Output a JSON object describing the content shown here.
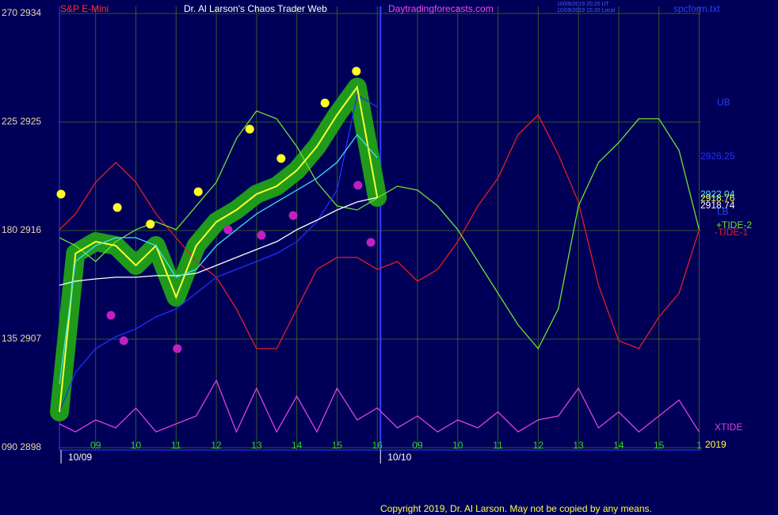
{
  "chart_data": {
    "type": "line",
    "symbol": "S&P E-Mini",
    "title": "Dr. Al Larson's Chaos Trader Web",
    "website": "Daytradingforecasts.com",
    "timestamps": [
      "10/09/2019 20:20 UT",
      "10/09/2019 15:20 Local"
    ],
    "file": "spcform.txt",
    "annotations": [
      "UB",
      "LB"
    ],
    "year": "2019",
    "copyright": "Copyright 2019, Dr. Al Larson. May not be copied by any means.",
    "grid": true,
    "grid_color": "#36552a",
    "axis_color": "#3040ff",
    "ylim": [
      2898,
      2934
    ],
    "yticks": [
      {
        "value": 2934,
        "label": "270 2934"
      },
      {
        "value": 2925,
        "label": "225 2925"
      },
      {
        "value": 2916,
        "label": "180 2916"
      },
      {
        "value": 2907,
        "label": "135 2907"
      },
      {
        "value": 2898,
        "label": "090 2898"
      }
    ],
    "xlim": [
      0.1,
      16.05
    ],
    "xticks": [
      {
        "value": 1,
        "label": "09"
      },
      {
        "value": 2,
        "label": "10"
      },
      {
        "value": 3,
        "label": "11"
      },
      {
        "value": 4,
        "label": "12"
      },
      {
        "value": 5,
        "label": "13"
      },
      {
        "value": 6,
        "label": "14"
      },
      {
        "value": 7,
        "label": "15"
      },
      {
        "value": 8,
        "label": "16"
      },
      {
        "value": 9,
        "label": "09"
      },
      {
        "value": 10,
        "label": "10"
      },
      {
        "value": 11,
        "label": "11"
      },
      {
        "value": 12,
        "label": "12"
      },
      {
        "value": 13,
        "label": "13"
      },
      {
        "value": 14,
        "label": "14"
      },
      {
        "value": 15,
        "label": "15"
      },
      {
        "value": 16,
        "label": "1"
      }
    ],
    "day_labels": [
      {
        "value": 0.14,
        "label": "10/09"
      },
      {
        "value": 8.08,
        "label": "10/10"
      }
    ],
    "x": [
      0.1,
      0.5,
      1,
      1.5,
      2,
      2.5,
      3,
      3.5,
      4,
      4.5,
      5,
      5.5,
      6,
      6.5,
      7,
      7.5,
      8,
      8.5,
      9,
      9.5,
      10,
      10.5,
      11,
      11.5,
      12,
      12.5,
      13,
      13.5,
      14,
      14.5,
      15,
      15.5,
      16
    ],
    "series": [
      {
        "name": "-TIDE-1",
        "color": "#e02020",
        "values": [
          2916.07,
          2917.38,
          2920.01,
          2921.65,
          2920.01,
          2917.38,
          2915.41,
          2913.44,
          2912.13,
          2909.5,
          2906.21,
          2906.21,
          2909.5,
          2912.78,
          2913.77,
          2913.77,
          2912.78,
          2913.44,
          2911.8,
          2912.78,
          2915.08,
          2918.04,
          2920.34,
          2923.95,
          2925.59,
          2922.31,
          2918.37,
          2911.47,
          2906.87,
          2906.21,
          2908.84,
          2910.81,
          2916.07
        ]
      },
      {
        "name": "+TIDE-2",
        "color": "#70e030",
        "values": [
          2915.41,
          2914.75,
          2913.44,
          2915.08,
          2916.07,
          2916.72,
          2916.07,
          2918.04,
          2920.01,
          2923.62,
          2925.92,
          2925.27,
          2922.97,
          2920.01,
          2918.04,
          2917.71,
          2918.7,
          2919.68,
          2919.35,
          2918.04,
          2916.07,
          2913.44,
          2910.81,
          2908.18,
          2906.21,
          2909.5,
          2918.04,
          2921.65,
          2923.29,
          2925.27,
          2925.27,
          2922.64,
          2916.07
        ]
      },
      {
        "name": "XTIDE",
        "color": "#e040e0",
        "values": [
          2899.97,
          2899.31,
          2900.3,
          2899.64,
          2901.29,
          2899.31,
          2899.97,
          2900.63,
          2903.58,
          2899.31,
          2902.93,
          2899.31,
          2902.27,
          2899.31,
          2902.93,
          2900.3,
          2901.29,
          2899.64,
          2900.63,
          2899.31,
          2900.3,
          2899.64,
          2900.96,
          2899.31,
          2900.3,
          2900.63,
          2902.93,
          2899.64,
          2900.96,
          2899.31,
          2900.63,
          2901.94,
          2899.31
        ]
      },
      {
        "color": "#2030ff",
        "values": [
          2900.96,
          2904.24,
          2906.21,
          2907.2,
          2907.85,
          2908.84,
          2909.5,
          2910.81,
          2912.13,
          2912.78,
          2913.44,
          2914.1,
          2915.08,
          2916.72,
          2919.35,
          2927.24,
          2926.25,
          null,
          null,
          null,
          null,
          null,
          null,
          null,
          null,
          null,
          null,
          null,
          null,
          null,
          null,
          null,
          null
        ]
      },
      {
        "color": "#ffffff",
        "values": [
          2911.47,
          2911.8,
          2911.99,
          2912.13,
          2912.13,
          2912.26,
          2912.26,
          2912.45,
          2913.11,
          2913.77,
          2914.43,
          2915.08,
          2916.07,
          2916.86,
          2917.71,
          2918.37,
          2918.74,
          null,
          null,
          null,
          null,
          null,
          null,
          null,
          null,
          null,
          null,
          null,
          null,
          null,
          null,
          null,
          null
        ]
      },
      {
        "color": "#ffff30",
        "envelope_color": "#1f9a1a",
        "values": [
          2900.96,
          2914.1,
          2915.08,
          2914.75,
          2913.11,
          2914.75,
          2910.48,
          2914.75,
          2916.72,
          2917.71,
          2919.02,
          2919.68,
          2920.99,
          2922.97,
          2925.59,
          2927.89,
          2918.76,
          null,
          null,
          null,
          null,
          null,
          null,
          null,
          null,
          null,
          null,
          null,
          null,
          null,
          null,
          null,
          null
        ]
      },
      {
        "color": "#40e0ff",
        "values": [
          2903.26,
          2913.44,
          2914.75,
          2915.41,
          2915.41,
          2914.75,
          2912.13,
          2912.78,
          2914.75,
          2916.07,
          2917.38,
          2918.37,
          2919.35,
          2920.34,
          2921.65,
          2923.95,
          2922.04,
          null,
          null,
          null,
          null,
          null,
          null,
          null,
          null,
          null,
          null,
          null,
          null,
          null,
          null,
          null,
          null
        ]
      }
    ],
    "dots": [
      {
        "color": "#ffff20",
        "x": [
          0.14,
          1.54,
          2.36,
          3.55,
          4.83,
          5.61,
          6.7,
          7.48
        ],
        "values": [
          2919.02,
          2917.91,
          2916.53,
          2919.22,
          2924.41,
          2921.98,
          2926.58,
          2929.21
        ]
      },
      {
        "color": "#c020c0",
        "x": [
          1.38,
          1.7,
          3.03,
          4.29,
          5.12,
          5.91,
          7.52,
          7.84
        ],
        "values": [
          2908.97,
          2906.87,
          2906.21,
          2916.07,
          2915.61,
          2917.25,
          2919.75,
          2915.02
        ]
      }
    ]
  }
}
